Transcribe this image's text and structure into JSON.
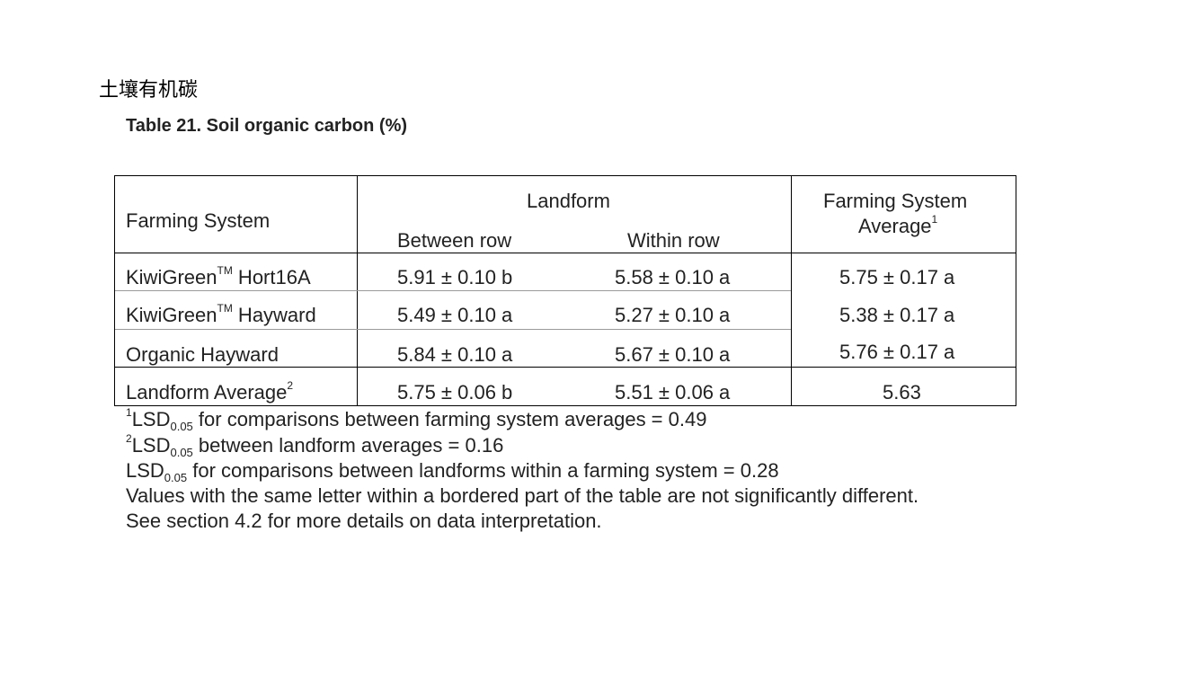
{
  "heading_cn": "土壤有机碳",
  "table_caption": "Table 21. Soil organic carbon (%)",
  "header": {
    "farming_system": "Farming System",
    "landform": "Landform",
    "between_row": "Between row",
    "within_row": "Within row",
    "fs_average": "Farming System",
    "fs_average_line2": "Average",
    "fs_average_sup": "1"
  },
  "rows": [
    {
      "name": "KiwiGreen",
      "sup": "TM",
      "suffix": " Hort16A",
      "between": "5.91 ± 0.10 b",
      "within": "5.58 ± 0.10 a",
      "average": "5.75 ± 0.17 a"
    },
    {
      "name": "KiwiGreen",
      "sup": "TM",
      "suffix": " Hayward",
      "between": "5.49 ± 0.10 a",
      "within": "5.27 ± 0.10 a",
      "average": "5.38 ± 0.17 a"
    },
    {
      "name": "Organic Hayward",
      "sup": "",
      "suffix": "",
      "between": "5.84 ± 0.10 a",
      "within": "5.67 ± 0.10 a",
      "average": "5.76 ± 0.17 a"
    }
  ],
  "landform_avg": {
    "label": "Landform Average",
    "sup": "2",
    "between": "5.75 ± 0.06 b",
    "within": "5.51 ± 0.06 a",
    "overall": "5.63"
  },
  "footnotes": {
    "fn1": {
      "mark": "1",
      "lsd": "LSD",
      "sub": "0.05",
      "text": " for comparisons between farming system averages = 0.49"
    },
    "fn2": {
      "mark": "2",
      "lsd": "LSD",
      "sub": "0.05",
      "text": " between landform averages = 0.16"
    },
    "fn3": {
      "lsd": "LSD",
      "sub": "0.05",
      "text": " for comparisons between landforms within a farming system = 0.28"
    },
    "fn4": "Values with the same letter within a bordered part of the table are not significantly different.",
    "fn5": "See section 4.2 for more details on data interpretation."
  }
}
